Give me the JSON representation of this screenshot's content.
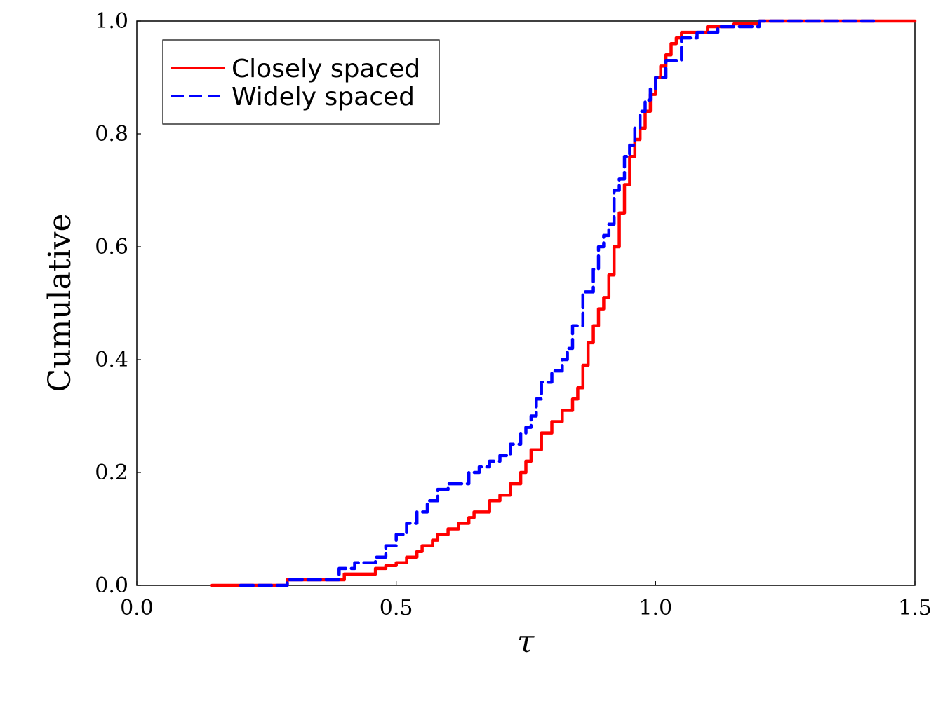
{
  "chart_data": {
    "type": "line",
    "title": "",
    "xlabel": "τ",
    "ylabel": "Cumulative",
    "xlim": [
      0.0,
      1.5
    ],
    "ylim": [
      0.0,
      1.0
    ],
    "xticks": [
      0.0,
      0.5,
      1.0,
      1.5
    ],
    "xtick_labels": [
      "0.0",
      "0.5",
      "1.0",
      "1.5"
    ],
    "yticks": [
      0.0,
      0.2,
      0.4,
      0.6,
      0.8,
      1.0
    ],
    "ytick_labels": [
      "0.0",
      "0.2",
      "0.4",
      "0.6",
      "0.8",
      "1.0"
    ],
    "grid": false,
    "legend_position": "top-left",
    "series": [
      {
        "name": "Closely spaced",
        "color": "#ff0000",
        "style": "solid",
        "x": [
          0.145,
          0.28,
          0.29,
          0.33,
          0.38,
          0.4,
          0.43,
          0.46,
          0.48,
          0.5,
          0.52,
          0.54,
          0.55,
          0.57,
          0.58,
          0.6,
          0.62,
          0.64,
          0.65,
          0.68,
          0.7,
          0.72,
          0.74,
          0.75,
          0.76,
          0.78,
          0.8,
          0.82,
          0.84,
          0.85,
          0.86,
          0.87,
          0.88,
          0.89,
          0.9,
          0.91,
          0.92,
          0.93,
          0.94,
          0.95,
          0.96,
          0.97,
          0.98,
          0.99,
          1.0,
          1.01,
          1.02,
          1.03,
          1.04,
          1.05,
          1.07,
          1.1,
          1.15,
          1.2,
          1.3,
          1.5
        ],
        "y": [
          0.0,
          0.0,
          0.01,
          0.01,
          0.01,
          0.02,
          0.02,
          0.03,
          0.035,
          0.04,
          0.05,
          0.06,
          0.07,
          0.08,
          0.09,
          0.1,
          0.11,
          0.12,
          0.13,
          0.15,
          0.16,
          0.18,
          0.2,
          0.22,
          0.24,
          0.27,
          0.29,
          0.31,
          0.33,
          0.35,
          0.39,
          0.43,
          0.46,
          0.49,
          0.51,
          0.55,
          0.6,
          0.66,
          0.71,
          0.76,
          0.79,
          0.81,
          0.84,
          0.87,
          0.9,
          0.92,
          0.94,
          0.96,
          0.97,
          0.98,
          0.98,
          0.99,
          0.995,
          1.0,
          1.0,
          1.0
        ]
      },
      {
        "name": "Widely spaced",
        "color": "#0000ff",
        "style": "dashed",
        "x": [
          0.2,
          0.28,
          0.29,
          0.33,
          0.37,
          0.39,
          0.42,
          0.46,
          0.48,
          0.5,
          0.52,
          0.54,
          0.56,
          0.58,
          0.6,
          0.62,
          0.64,
          0.66,
          0.68,
          0.7,
          0.72,
          0.74,
          0.75,
          0.76,
          0.77,
          0.78,
          0.8,
          0.82,
          0.83,
          0.84,
          0.86,
          0.88,
          0.89,
          0.9,
          0.91,
          0.92,
          0.93,
          0.94,
          0.95,
          0.96,
          0.97,
          0.98,
          0.99,
          1.0,
          1.02,
          1.05,
          1.08,
          1.12,
          1.2,
          1.3,
          1.42
        ],
        "y": [
          0.0,
          0.0,
          0.01,
          0.01,
          0.01,
          0.03,
          0.04,
          0.05,
          0.07,
          0.09,
          0.11,
          0.13,
          0.15,
          0.17,
          0.18,
          0.18,
          0.2,
          0.21,
          0.22,
          0.23,
          0.25,
          0.27,
          0.28,
          0.3,
          0.33,
          0.36,
          0.38,
          0.4,
          0.42,
          0.46,
          0.52,
          0.56,
          0.6,
          0.62,
          0.64,
          0.7,
          0.72,
          0.76,
          0.78,
          0.81,
          0.84,
          0.86,
          0.88,
          0.9,
          0.93,
          0.97,
          0.98,
          0.99,
          1.0,
          1.0,
          1.0
        ]
      }
    ]
  }
}
